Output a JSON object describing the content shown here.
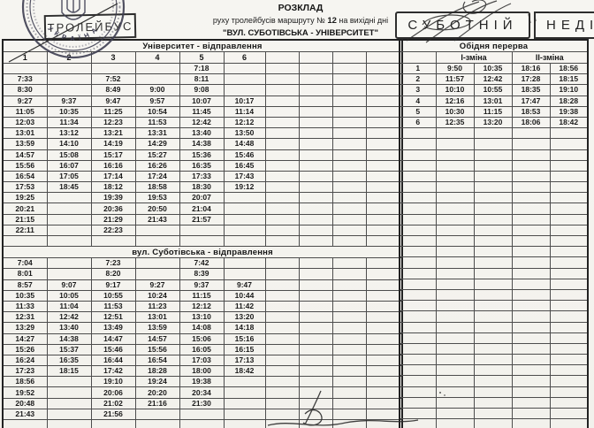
{
  "header": {
    "title": "РОЗКЛАД",
    "subtitle_pre": "руху тролейбусів маршруту №",
    "route_number": "12",
    "subtitle_post": "на вихідні дні",
    "route_title": "\"ВУЛ. СУБОТІВСЬКА - УНІВЕРСИТЕТ\"",
    "vehicle_box": "ТРОЛЕЙБУС",
    "saturday_box": "СУБОТНІЙ",
    "sunday_box": "НЕДІЛ",
    "stamp_arc_text": "У К Р А Ї Н А"
  },
  "colors": {
    "paper": "#f5f4ef",
    "ink": "#161616",
    "grid": "#4d4d4d",
    "stamp_ink": "#3f3f52"
  },
  "left_table": {
    "section1": {
      "title": "Університет - відправлення",
      "column_headers": [
        "1",
        "2",
        "3",
        "4",
        "5",
        "6",
        "",
        "",
        "",
        ""
      ],
      "rows": [
        [
          "",
          "",
          "",
          "",
          "7:18",
          "",
          "",
          "",
          "",
          ""
        ],
        [
          "7:33",
          "",
          "7:52",
          "",
          "8:11",
          "",
          "",
          "",
          "",
          ""
        ],
        [
          "8:30",
          "",
          "8:49",
          "9:00",
          "9:08",
          "",
          "",
          "",
          "",
          ""
        ],
        [
          "9:27",
          "9:37",
          "9:47",
          "9:57",
          "10:07",
          "10:17",
          "",
          "",
          "",
          ""
        ],
        [
          "11:05",
          "10:35",
          "11:25",
          "10:54",
          "11:45",
          "11:14",
          "",
          "",
          "",
          ""
        ],
        [
          "12:03",
          "11:34",
          "12:23",
          "11:53",
          "12:42",
          "12:12",
          "",
          "",
          "",
          ""
        ],
        [
          "13:01",
          "13:12",
          "13:21",
          "13:31",
          "13:40",
          "13:50",
          "",
          "",
          "",
          ""
        ],
        [
          "13:59",
          "14:10",
          "14:19",
          "14:29",
          "14:38",
          "14:48",
          "",
          "",
          "",
          ""
        ],
        [
          "14:57",
          "15:08",
          "15:17",
          "15:27",
          "15:36",
          "15:46",
          "",
          "",
          "",
          ""
        ],
        [
          "15:56",
          "16:07",
          "16:16",
          "16:26",
          "16:35",
          "16:45",
          "",
          "",
          "",
          ""
        ],
        [
          "16:54",
          "17:05",
          "17:14",
          "17:24",
          "17:33",
          "17:43",
          "",
          "",
          "",
          ""
        ],
        [
          "17:53",
          "18:45",
          "18:12",
          "18:58",
          "18:30",
          "19:12",
          "",
          "",
          "",
          ""
        ],
        [
          "19:25",
          "",
          "19:39",
          "19:53",
          "20:07",
          "",
          "",
          "",
          "",
          ""
        ],
        [
          "20:21",
          "",
          "20:36",
          "20:50",
          "21:04",
          "",
          "",
          "",
          "",
          ""
        ],
        [
          "21:15",
          "",
          "21:29",
          "21:43",
          "21:57",
          "",
          "",
          "",
          "",
          ""
        ],
        [
          "22:11",
          "",
          "22:23",
          "",
          "",
          "",
          "",
          "",
          "",
          ""
        ],
        [
          "",
          "",
          "",
          "",
          "",
          "",
          "",
          "",
          "",
          ""
        ]
      ]
    },
    "section2": {
      "title": "вул. Суботівська - відправлення",
      "rows": [
        [
          "7:04",
          "",
          "7:23",
          "",
          "7:42",
          "",
          "",
          "",
          "",
          ""
        ],
        [
          "8:01",
          "",
          "8:20",
          "",
          "8:39",
          "",
          "",
          "",
          "",
          ""
        ],
        [
          "8:57",
          "9:07",
          "9:17",
          "9:27",
          "9:37",
          "9:47",
          "",
          "",
          "",
          ""
        ],
        [
          "10:35",
          "10:05",
          "10:55",
          "10:24",
          "11:15",
          "10:44",
          "",
          "",
          "",
          ""
        ],
        [
          "11:33",
          "11:04",
          "11:53",
          "11:23",
          "12:12",
          "11:42",
          "",
          "",
          "",
          ""
        ],
        [
          "12:31",
          "12:42",
          "12:51",
          "13:01",
          "13:10",
          "13:20",
          "",
          "",
          "",
          ""
        ],
        [
          "13:29",
          "13:40",
          "13:49",
          "13:59",
          "14:08",
          "14:18",
          "",
          "",
          "",
          ""
        ],
        [
          "14:27",
          "14:38",
          "14:47",
          "14:57",
          "15:06",
          "15:16",
          "",
          "",
          "",
          ""
        ],
        [
          "15:26",
          "15:37",
          "15:46",
          "15:56",
          "16:05",
          "16:15",
          "",
          "",
          "",
          ""
        ],
        [
          "16:24",
          "16:35",
          "16:44",
          "16:54",
          "17:03",
          "17:13",
          "",
          "",
          "",
          ""
        ],
        [
          "17:23",
          "18:15",
          "17:42",
          "18:28",
          "18:00",
          "18:42",
          "",
          "",
          "",
          ""
        ],
        [
          "18:56",
          "",
          "19:10",
          "19:24",
          "19:38",
          "",
          "",
          "",
          "",
          ""
        ],
        [
          "19:52",
          "",
          "20:06",
          "20:20",
          "20:34",
          "",
          "",
          "",
          "",
          ""
        ],
        [
          "20:48",
          "",
          "21:02",
          "21:16",
          "21:30",
          "",
          "",
          "",
          "",
          ""
        ],
        [
          "21:43",
          "",
          "21:56",
          "",
          "",
          "",
          "",
          "",
          "",
          ""
        ],
        [
          "",
          "",
          "",
          "",
          "",
          "",
          "",
          "",
          "",
          ""
        ],
        [
          "",
          "",
          "",
          "",
          "",
          "",
          "",
          "",
          "",
          ""
        ]
      ]
    }
  },
  "right_table": {
    "title": "Обідня перерва",
    "shift1_label": "І-зміна",
    "shift2_label": "ІІ-зміна",
    "rows": [
      [
        "1",
        "9:50",
        "10:35",
        "18:16",
        "18:56"
      ],
      [
        "2",
        "11:57",
        "12:42",
        "17:28",
        "18:15"
      ],
      [
        "3",
        "10:10",
        "10:55",
        "18:35",
        "19:10"
      ],
      [
        "4",
        "12:16",
        "13:01",
        "17:47",
        "18:28"
      ],
      [
        "5",
        "10:30",
        "11:15",
        "18:53",
        "19:38"
      ],
      [
        "6",
        "12:35",
        "13:20",
        "18:06",
        "18:42"
      ]
    ],
    "empty_row_count": 28
  }
}
